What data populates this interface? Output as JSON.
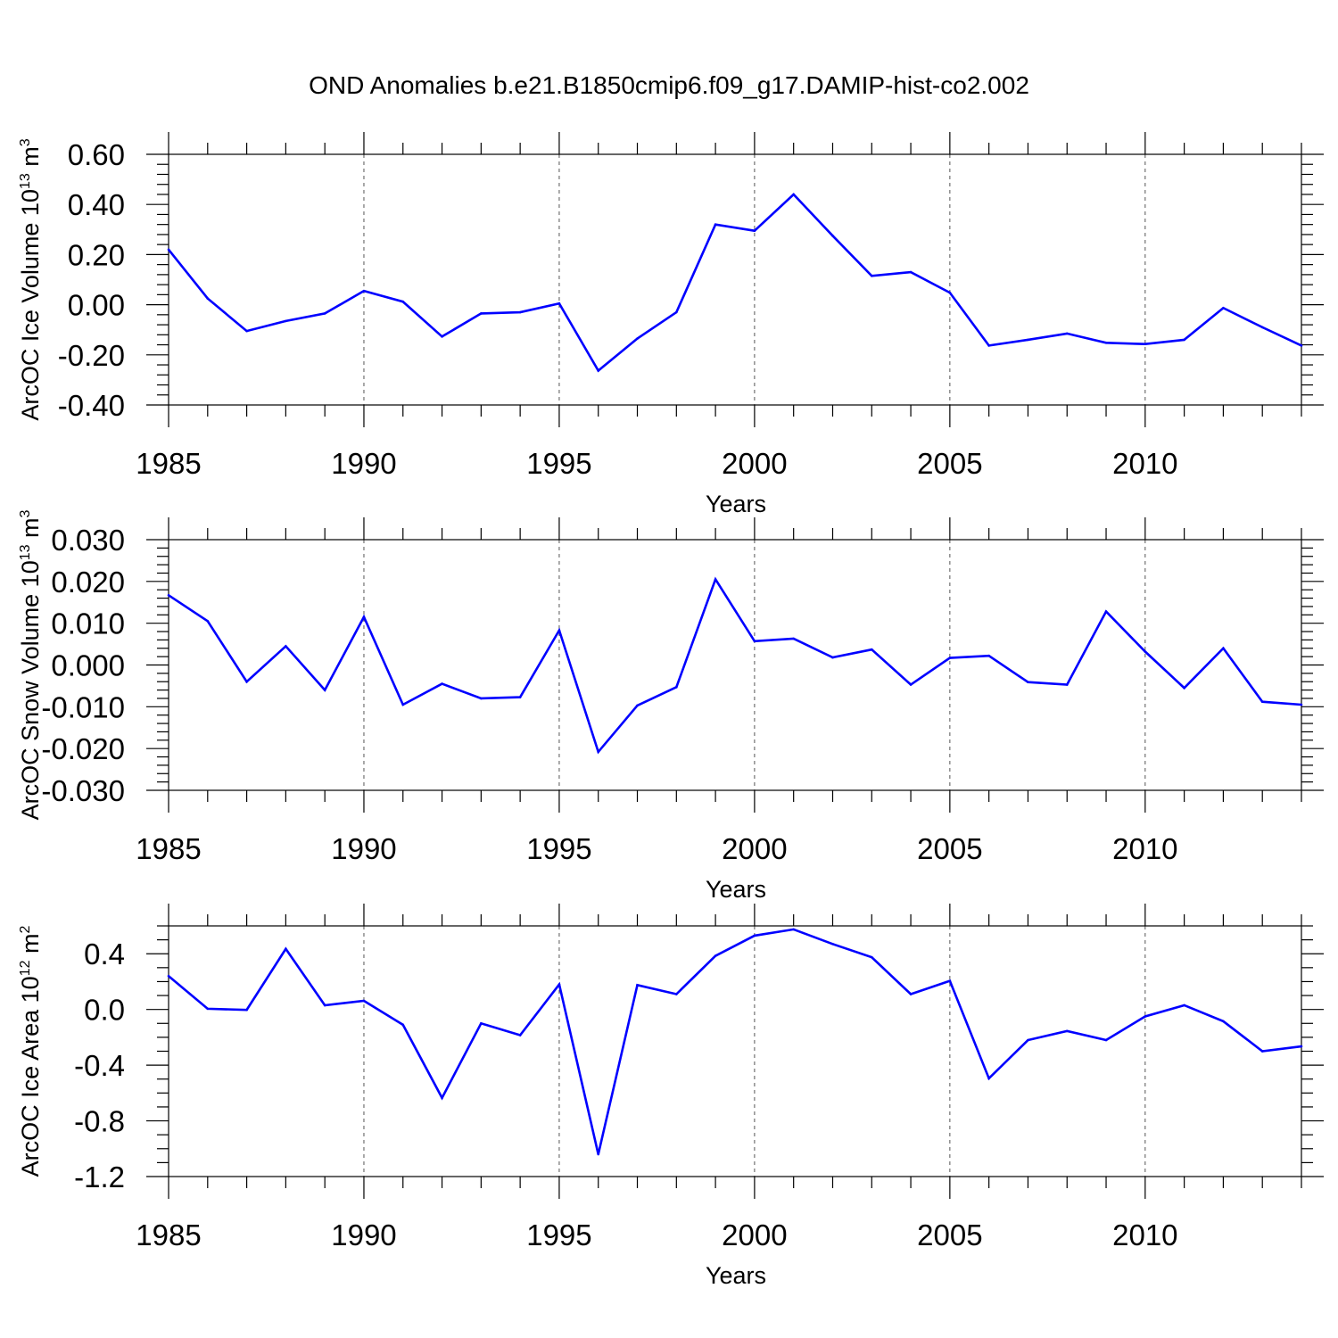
{
  "title": "OND Anomalies b.e21.B1850cmip6.f09_g17.DAMIP-hist-co2.002",
  "line_color": "#0000ff",
  "chart_data": [
    {
      "type": "line",
      "title": "OND Anomalies b.e21.B1850cmip6.f09_g17.DAMIP-hist-co2.002",
      "xlabel": "Years",
      "ylabel": {
        "base": "ArcOC Ice Volume 10",
        "exp": "13",
        "unit": " m",
        "unit_exp": "3"
      },
      "xlim": [
        1985,
        2014
      ],
      "ylim": [
        -0.4,
        0.6
      ],
      "xticks": [
        1985,
        1990,
        1995,
        2000,
        2005,
        2010
      ],
      "xtick_labels": [
        "1985",
        "1990",
        "1995",
        "2000",
        "2005",
        "2010"
      ],
      "yticks": [
        -0.4,
        -0.2,
        0.0,
        0.2,
        0.4,
        0.6
      ],
      "ytick_labels": [
        "-0.40",
        "-0.20",
        "0.00",
        "0.20",
        "0.40",
        "0.60"
      ],
      "ymajor_step": 0.2,
      "yminor_step": 0.04,
      "grid": "dashed vertical at major x ticks",
      "x": [
        1985,
        1986,
        1987,
        1988,
        1989,
        1990,
        1991,
        1992,
        1993,
        1994,
        1995,
        1996,
        1997,
        1998,
        1999,
        2000,
        2001,
        2002,
        2003,
        2004,
        2005,
        2006,
        2007,
        2008,
        2009,
        2010,
        2011,
        2012,
        2013,
        2014
      ],
      "series": [
        {
          "name": "Ice Volume",
          "values": [
            0.22,
            0.025,
            -0.105,
            -0.065,
            -0.035,
            0.055,
            0.012,
            -0.127,
            -0.035,
            -0.03,
            0.005,
            -0.263,
            -0.135,
            -0.03,
            0.32,
            0.295,
            0.44,
            0.275,
            0.115,
            0.13,
            0.048,
            -0.163,
            -0.14,
            -0.115,
            -0.152,
            -0.157,
            -0.14,
            -0.013,
            -0.09,
            -0.163
          ]
        }
      ]
    },
    {
      "type": "line",
      "xlabel": "Years",
      "ylabel": {
        "base": "ArcOC Snow Volume 10",
        "exp": "13",
        "unit": " m",
        "unit_exp": "3"
      },
      "xlim": [
        1985,
        2014
      ],
      "ylim": [
        -0.03,
        0.03
      ],
      "xticks": [
        1985,
        1990,
        1995,
        2000,
        2005,
        2010
      ],
      "xtick_labels": [
        "1985",
        "1990",
        "1995",
        "2000",
        "2005",
        "2010"
      ],
      "yticks": [
        -0.03,
        -0.02,
        -0.01,
        0.0,
        0.01,
        0.02,
        0.03
      ],
      "ytick_labels": [
        "-0.030",
        "-0.020",
        "-0.010",
        "0.000",
        "0.010",
        "0.020",
        "0.030"
      ],
      "ymajor_step": 0.01,
      "yminor_step": 0.002,
      "grid": "dashed vertical at major x ticks",
      "x": [
        1985,
        1986,
        1987,
        1988,
        1989,
        1990,
        1991,
        1992,
        1993,
        1994,
        1995,
        1996,
        1997,
        1998,
        1999,
        2000,
        2001,
        2002,
        2003,
        2004,
        2005,
        2006,
        2007,
        2008,
        2009,
        2010,
        2011,
        2012,
        2013,
        2014
      ],
      "series": [
        {
          "name": "Snow Volume",
          "values": [
            0.0167,
            0.0105,
            -0.004,
            0.0045,
            -0.006,
            0.0115,
            -0.0095,
            -0.0045,
            -0.008,
            -0.0077,
            0.0083,
            -0.0208,
            -0.0097,
            -0.0053,
            0.0205,
            0.0057,
            0.0063,
            0.0018,
            0.0037,
            -0.0047,
            0.0017,
            0.0022,
            -0.0041,
            -0.0047,
            0.0128,
            0.0032,
            -0.0055,
            0.004,
            -0.0088,
            -0.0095
          ]
        }
      ]
    },
    {
      "type": "line",
      "xlabel": "Years",
      "ylabel": {
        "base": "ArcOC Ice Area 10",
        "exp": "12",
        "unit": " m",
        "unit_exp": "2"
      },
      "xlim": [
        1985,
        2014
      ],
      "ylim": [
        -1.2,
        0.6
      ],
      "xticks": [
        1985,
        1990,
        1995,
        2000,
        2005,
        2010
      ],
      "xtick_labels": [
        "1985",
        "1990",
        "1995",
        "2000",
        "2005",
        "2010"
      ],
      "yticks": [
        -1.2,
        -0.8,
        -0.4,
        0.0,
        0.4
      ],
      "ytick_labels": [
        "-1.2",
        "-0.8",
        "-0.4",
        "0.0",
        "0.4"
      ],
      "ymajor_step": 0.4,
      "yminor_step": 0.1,
      "grid": "dashed vertical at major x ticks",
      "x": [
        1985,
        1986,
        1987,
        1988,
        1989,
        1990,
        1991,
        1992,
        1993,
        1994,
        1995,
        1996,
        1997,
        1998,
        1999,
        2000,
        2001,
        2002,
        2003,
        2004,
        2005,
        2006,
        2007,
        2008,
        2009,
        2010,
        2011,
        2012,
        2013,
        2014
      ],
      "series": [
        {
          "name": "Ice Area",
          "values": [
            0.24,
            0.005,
            -0.003,
            0.435,
            0.03,
            0.062,
            -0.11,
            -0.635,
            -0.1,
            -0.185,
            0.18,
            -1.04,
            0.175,
            0.11,
            0.385,
            0.53,
            0.575,
            0.47,
            0.375,
            0.11,
            0.205,
            -0.495,
            -0.22,
            -0.155,
            -0.22,
            -0.05,
            0.03,
            -0.085,
            -0.3,
            -0.265
          ]
        }
      ]
    }
  ]
}
